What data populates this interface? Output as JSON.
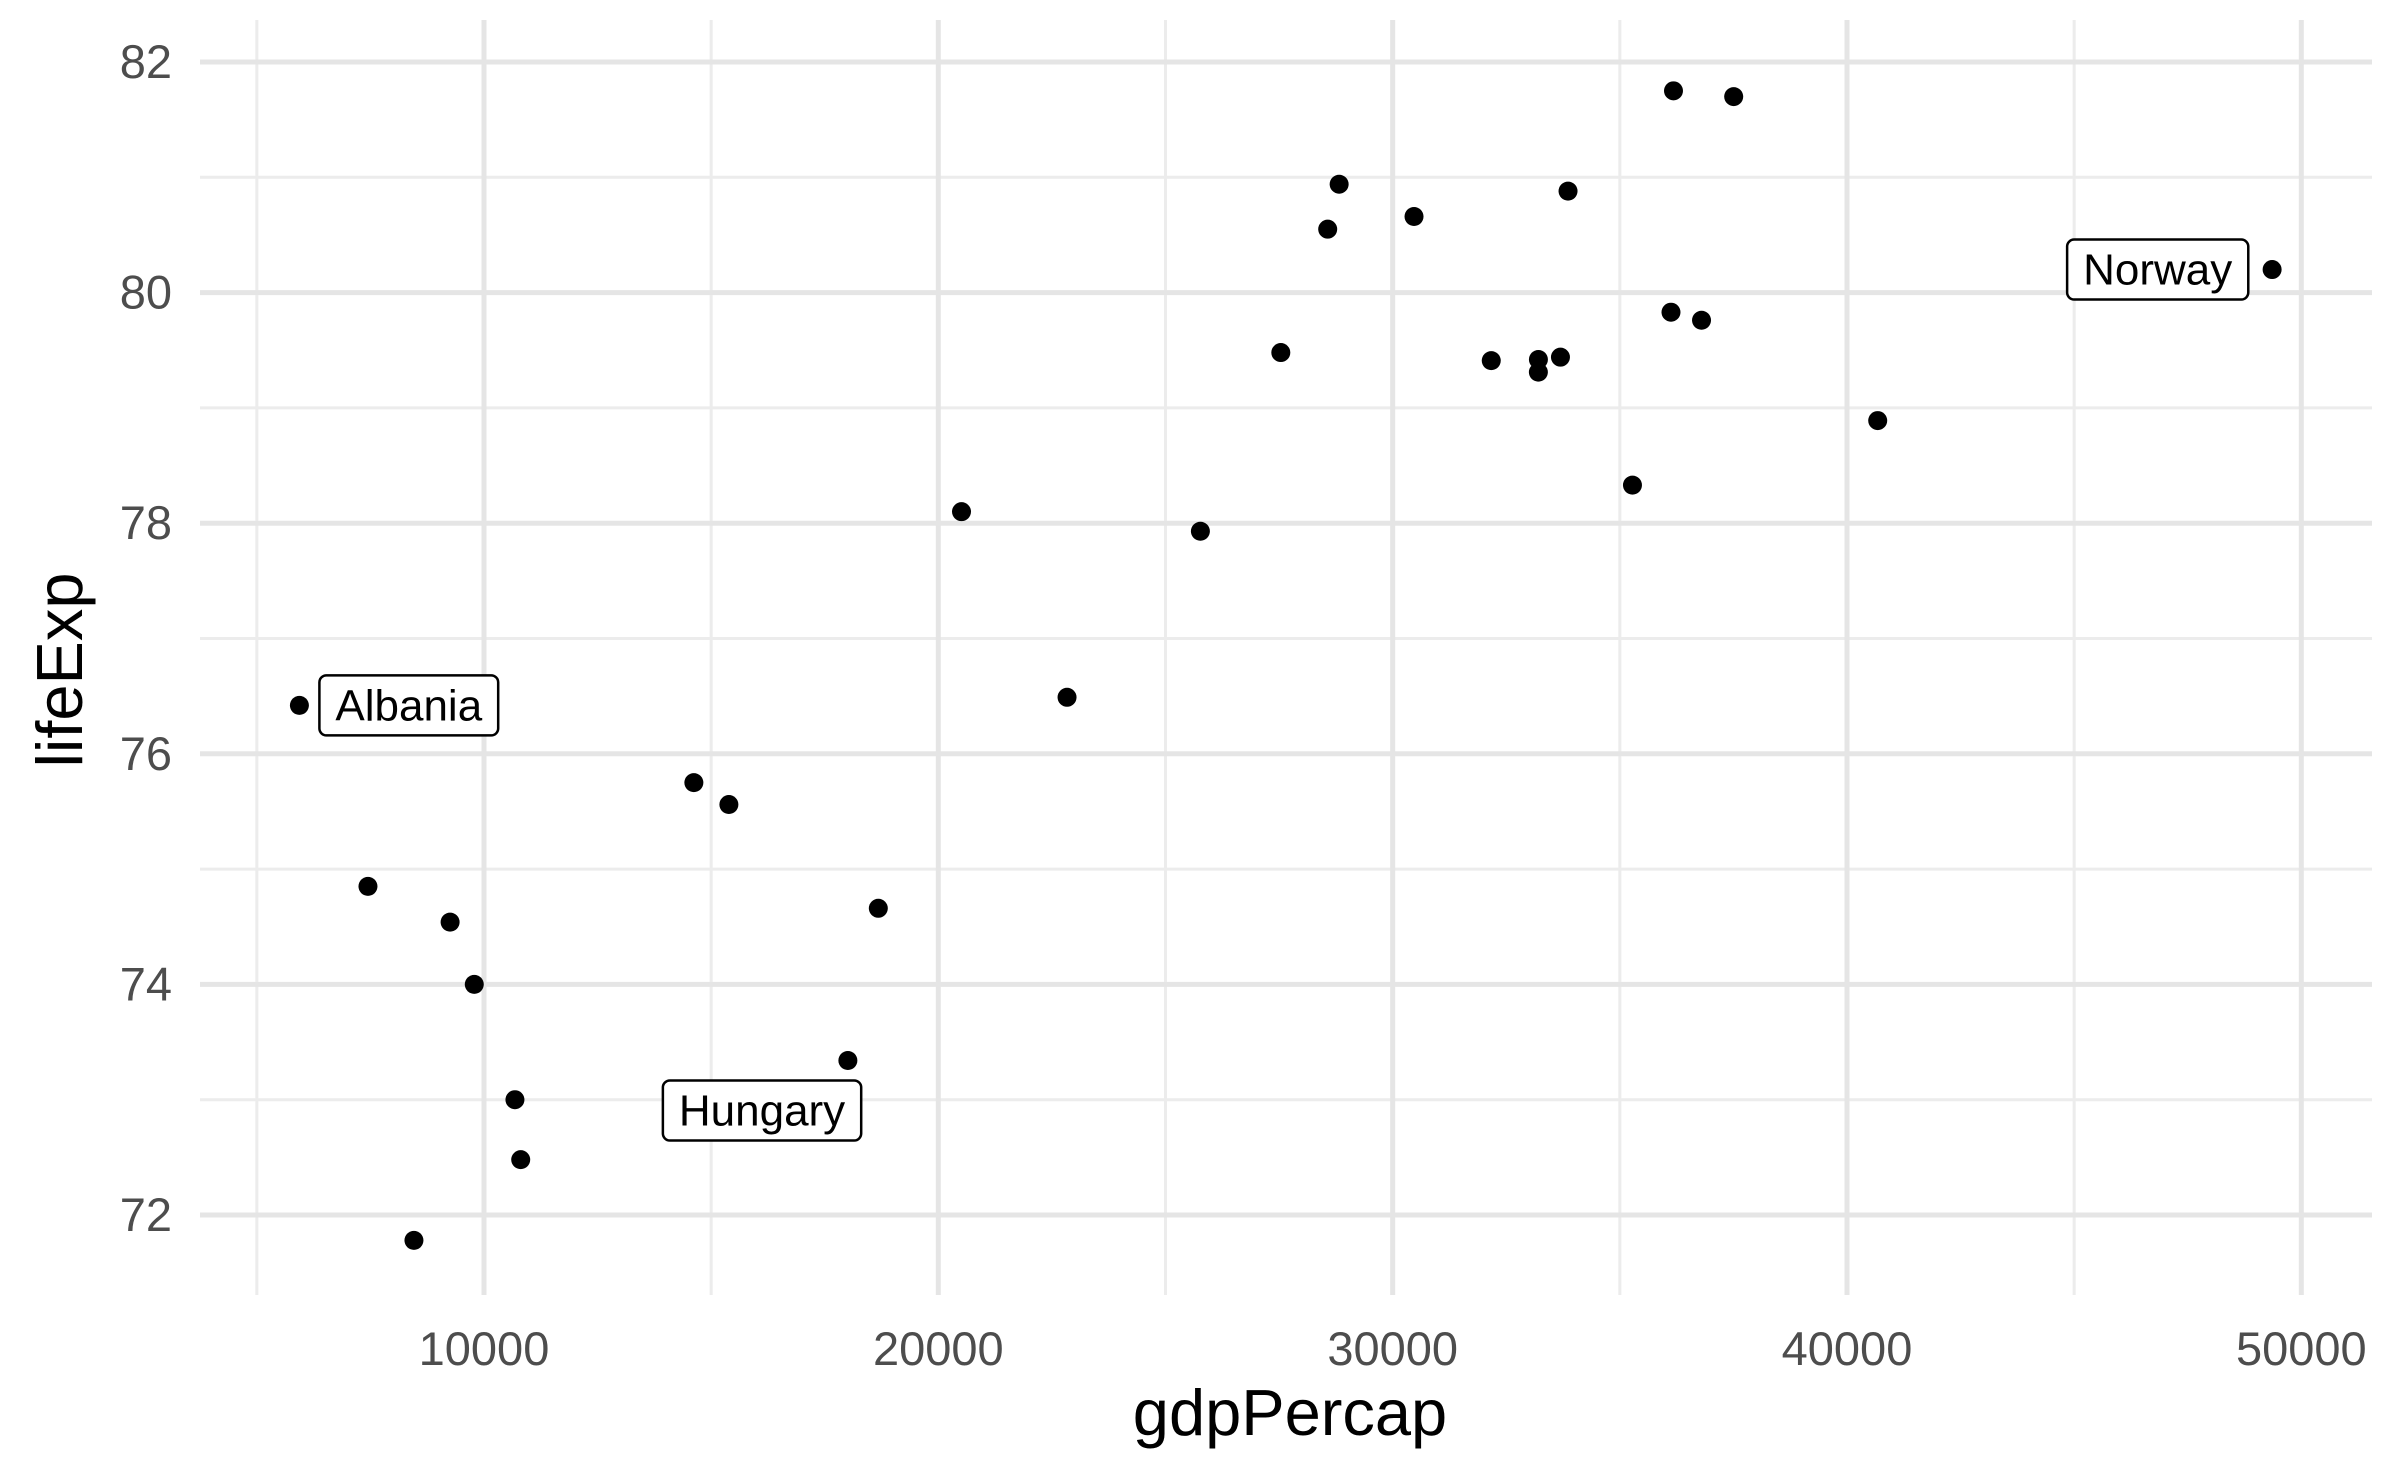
{
  "chart_data": {
    "type": "scatter",
    "title": "",
    "xlabel": "gdpPercap",
    "ylabel": "lifeExp",
    "xlim": [
      4500,
      50500
    ],
    "ylim": [
      71.4,
      82.5
    ],
    "x_major_ticks": [
      10000,
      20000,
      30000,
      40000,
      50000
    ],
    "x_minor_ticks": [
      5000,
      15000,
      25000,
      35000,
      45000
    ],
    "y_major_ticks": [
      72,
      74,
      76,
      78,
      80,
      82
    ],
    "y_minor_ticks": [
      73,
      75,
      77,
      79,
      81
    ],
    "x_tick_labels": [
      "10000",
      "20000",
      "30000",
      "40000",
      "50000"
    ],
    "y_tick_labels": [
      "72",
      "74",
      "76",
      "78",
      "80",
      "82"
    ],
    "grid": true,
    "legend": "none",
    "point_color": "#000000",
    "points": [
      {
        "x": 5937,
        "y": 76.42,
        "label": "Albania"
      },
      {
        "x": 7446,
        "y": 74.85
      },
      {
        "x": 9254,
        "y": 74.54
      },
      {
        "x": 9786,
        "y": 74.0
      },
      {
        "x": 10681,
        "y": 73.0
      },
      {
        "x": 10808,
        "y": 72.48
      },
      {
        "x": 8458,
        "y": 71.78
      },
      {
        "x": 14619,
        "y": 75.75
      },
      {
        "x": 15390,
        "y": 75.56
      },
      {
        "x": 18009,
        "y": 73.34,
        "label": "Hungary"
      },
      {
        "x": 18679,
        "y": 74.66
      },
      {
        "x": 20510,
        "y": 78.1
      },
      {
        "x": 22833,
        "y": 76.49
      },
      {
        "x": 25768,
        "y": 77.93
      },
      {
        "x": 27538,
        "y": 79.48
      },
      {
        "x": 28570,
        "y": 80.55
      },
      {
        "x": 28822,
        "y": 80.94
      },
      {
        "x": 30470,
        "y": 80.66
      },
      {
        "x": 32170,
        "y": 79.41
      },
      {
        "x": 33208,
        "y": 79.42
      },
      {
        "x": 33207,
        "y": 79.31
      },
      {
        "x": 33693,
        "y": 79.44
      },
      {
        "x": 33860,
        "y": 80.88
      },
      {
        "x": 35278,
        "y": 78.33
      },
      {
        "x": 36126,
        "y": 79.83
      },
      {
        "x": 36181,
        "y": 81.75
      },
      {
        "x": 36798,
        "y": 79.76
      },
      {
        "x": 37506,
        "y": 81.7
      },
      {
        "x": 40676,
        "y": 78.89
      },
      {
        "x": 49357,
        "y": 80.2,
        "label": "Norway"
      }
    ]
  }
}
